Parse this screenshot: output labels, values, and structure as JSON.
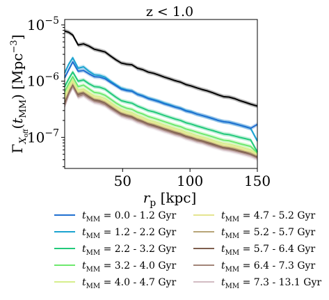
{
  "chart_data": {
    "type": "line",
    "title": "z < 1.0",
    "xlabel": "r_p [kpc]",
    "ylabel": "Γ_{X_off}(t_MM) [Mpc^-3]",
    "xlim": [
      7,
      150
    ],
    "ylim": [
      2.8e-08,
      1.25e-05
    ],
    "yscale": "log",
    "x_ticks": [
      {
        "value": 50,
        "label": "50"
      },
      {
        "value": 100,
        "label": "100"
      },
      {
        "value": 150,
        "label": "150"
      }
    ],
    "y_ticks": [
      {
        "value": 1e-07,
        "label": "10−7"
      },
      {
        "value": 1e-06,
        "label": "10−6"
      },
      {
        "value": 1e-05,
        "label": "10−5"
      }
    ],
    "legend_placement": "below",
    "x": [
      7,
      10,
      13,
      17,
      21,
      25,
      29,
      33,
      37,
      41,
      45,
      49,
      53,
      57,
      61,
      65,
      69,
      73,
      77,
      81,
      85,
      89,
      93,
      97,
      101,
      105,
      109,
      113,
      117,
      121,
      125,
      129,
      133,
      137,
      141,
      145,
      150
    ],
    "series": [
      {
        "name": "total",
        "color": "#000000",
        "label": "",
        "band": true,
        "values": [
          7.8e-06,
          7.4e-06,
          6.6e-06,
          4.4e-06,
          4.6e-06,
          4.2e-06,
          3.7e-06,
          3.5e-06,
          3.3e-06,
          2.8e-06,
          2.4e-06,
          2.1e-06,
          2e-06,
          1.95e-06,
          1.7e-06,
          1.6e-06,
          1.45e-06,
          1.38e-06,
          1.28e-06,
          1.18e-06,
          1.1e-06,
          1.02e-06,
          9.6e-07,
          8.7e-07,
          8.2e-07,
          7.6e-07,
          7.1e-07,
          6.7e-07,
          6.2e-07,
          5.7e-07,
          5.3e-07,
          5.2e-07,
          4.9e-07,
          4.5e-07,
          4.2e-07,
          3.9e-07,
          3.6e-07
        ]
      },
      {
        "name": "0.0 - 1.2 Gyr",
        "label": "0.0 - 1.2 Gyr",
        "color": "#1f6fd0",
        "values": [
          1.15e-06,
          1.6e-06,
          2.2e-06,
          1.5e-06,
          1.55e-06,
          1.35e-06,
          1.2e-06,
          1.18e-06,
          1.1e-06,
          9.5e-07,
          8.3e-07,
          7.2e-07,
          6.8e-07,
          6.6e-07,
          5.8e-07,
          5.4e-07,
          4.9e-07,
          4.6e-07,
          4.3e-07,
          3.95e-07,
          3.7e-07,
          3.45e-07,
          3.25e-07,
          2.95e-07,
          2.8e-07,
          2.6e-07,
          2.45e-07,
          2.3e-07,
          2.15e-07,
          2e-07,
          1.9e-07,
          1.85e-07,
          1.75e-07,
          1.65e-07,
          1.55e-07,
          1.45e-07,
          1.7e-07
        ]
      },
      {
        "name": "1.2 - 2.2 Gyr",
        "label": "1.2 - 2.2 Gyr",
        "color": "#1ba3d0",
        "values": [
          1.4e-06,
          2e-06,
          2.6e-06,
          1.7e-06,
          1.8e-06,
          1.5e-06,
          1.3e-06,
          1.27e-06,
          1.18e-06,
          1e-06,
          8.6e-07,
          7.5e-07,
          7e-07,
          6.7e-07,
          5.9e-07,
          5.5e-07,
          5e-07,
          4.7e-07,
          4.4e-07,
          4.05e-07,
          3.8e-07,
          3.5e-07,
          3.3e-07,
          3e-07,
          2.85e-07,
          2.6e-07,
          2.45e-07,
          2.3e-07,
          2.15e-07,
          2e-07,
          1.9e-07,
          1.85e-07,
          1.75e-07,
          1.65e-07,
          1.55e-07,
          1.45e-07,
          8.6e-08
        ]
      },
      {
        "name": "2.2 - 3.2 Gyr",
        "label": "2.2 - 3.2 Gyr",
        "color": "#22c97a",
        "values": [
          8e-07,
          1.1e-06,
          1.45e-06,
          1e-06,
          1.05e-06,
          9e-07,
          8e-07,
          7.8e-07,
          7.2e-07,
          6.1e-07,
          5.2e-07,
          4.5e-07,
          4.25e-07,
          4.05e-07,
          3.6e-07,
          3.3e-07,
          3e-07,
          2.85e-07,
          2.65e-07,
          2.45e-07,
          2.28e-07,
          2.12e-07,
          2e-07,
          1.82e-07,
          1.72e-07,
          1.6e-07,
          1.5e-07,
          1.4e-07,
          1.32e-07,
          1.23e-07,
          1.15e-07,
          1.12e-07,
          1.06e-07,
          1e-07,
          9.5e-08,
          9e-08,
          5.5e-08
        ]
      },
      {
        "name": "3.2 - 4.0 Gyr",
        "label": "3.2 - 4.0 Gyr",
        "color": "#6ee86e",
        "values": [
          6.5e-07,
          9e-07,
          1.2e-06,
          8e-07,
          8.5e-07,
          7.3e-07,
          6.3e-07,
          6.1e-07,
          5.6e-07,
          4.8e-07,
          4.1e-07,
          3.6e-07,
          3.3e-07,
          3.15e-07,
          2.8e-07,
          2.6e-07,
          2.35e-07,
          2.2e-07,
          2.05e-07,
          1.9e-07,
          1.77e-07,
          1.64e-07,
          1.55e-07,
          1.41e-07,
          1.33e-07,
          1.24e-07,
          1.16e-07,
          1.09e-07,
          1.02e-07,
          9.5e-08,
          8.9e-08,
          8.7e-08,
          8.2e-08,
          7.7e-08,
          7.3e-08,
          6.9e-08,
          5.3e-08
        ]
      },
      {
        "name": "4.0 - 4.7 Gyr",
        "label": "4.0 - 4.7 Gyr",
        "color": "#d6ee8c",
        "values": [
          5.5e-07,
          8e-07,
          1.05e-06,
          7e-07,
          7.3e-07,
          6.3e-07,
          5.5e-07,
          5.3e-07,
          4.9e-07,
          4.2e-07,
          3.6e-07,
          3.15e-07,
          2.9e-07,
          2.75e-07,
          2.45e-07,
          2.27e-07,
          2.05e-07,
          1.93e-07,
          1.8e-07,
          1.66e-07,
          1.55e-07,
          1.44e-07,
          1.36e-07,
          1.24e-07,
          1.17e-07,
          1.08e-07,
          1.02e-07,
          9.6e-08,
          8.9e-08,
          8.3e-08,
          7.8e-08,
          7.6e-08,
          7.2e-08,
          6.8e-08,
          6.4e-08,
          6e-08,
          5.1e-08
        ]
      },
      {
        "name": "4.7 - 5.2 Gyr",
        "label": "4.7 - 5.2 Gyr",
        "color": "#e5e590",
        "values": [
          5e-07,
          7.3e-07,
          9.8e-07,
          6.5e-07,
          6.8e-07,
          5.9e-07,
          5.1e-07,
          4.9e-07,
          4.5e-07,
          3.9e-07,
          3.35e-07,
          2.9e-07,
          2.7e-07,
          2.55e-07,
          2.28e-07,
          2.1e-07,
          1.9e-07,
          1.8e-07,
          1.67e-07,
          1.54e-07,
          1.44e-07,
          1.34e-07,
          1.26e-07,
          1.15e-07,
          1.08e-07,
          1e-07,
          9.5e-08,
          8.9e-08,
          8.3e-08,
          7.7e-08,
          7.2e-08,
          7e-08,
          6.7e-08,
          6.3e-08,
          5.9e-08,
          5.6e-08,
          4.9e-08
        ]
      },
      {
        "name": "5.2 - 5.7 Gyr",
        "label": "5.2 - 5.7 Gyr",
        "color": "#b7a477",
        "values": [
          4.6e-07,
          6.9e-07,
          9.3e-07,
          6.2e-07,
          6.5e-07,
          5.6e-07,
          4.9e-07,
          4.7e-07,
          4.3e-07,
          3.7e-07,
          3.2e-07,
          2.78e-07,
          2.58e-07,
          2.45e-07,
          2.18e-07,
          2.02e-07,
          1.83e-07,
          1.72e-07,
          1.6e-07,
          1.48e-07,
          1.38e-07,
          1.28e-07,
          1.21e-07,
          1.1e-07,
          1.04e-07,
          9.6e-08,
          9.1e-08,
          8.5e-08,
          8e-08,
          7.4e-08,
          6.9e-08,
          6.7e-08,
          6.4e-08,
          6e-08,
          5.7e-08,
          5.3e-08,
          4.7e-08
        ]
      },
      {
        "name": "5.7 - 6.4 Gyr",
        "label": "5.7 - 6.4 Gyr",
        "color": "#7e5e4e",
        "values": [
          4.2e-07,
          6.5e-07,
          8.8e-07,
          5.8e-07,
          6.2e-07,
          5.3e-07,
          4.65e-07,
          4.45e-07,
          4.1e-07,
          3.5e-07,
          3.05e-07,
          2.65e-07,
          2.46e-07,
          2.33e-07,
          2.08e-07,
          1.93e-07,
          1.75e-07,
          1.64e-07,
          1.53e-07,
          1.41e-07,
          1.32e-07,
          1.22e-07,
          1.15e-07,
          1.05e-07,
          9.9e-08,
          9.2e-08,
          8.7e-08,
          8.1e-08,
          7.6e-08,
          7.1e-08,
          6.6e-08,
          6.4e-08,
          6.1e-08,
          5.7e-08,
          5.4e-08,
          5.1e-08,
          4.5e-08
        ]
      },
      {
        "name": "6.4 - 7.3 Gyr",
        "label": "6.4 - 7.3 Gyr",
        "color": "#a28478",
        "values": [
          3.8e-07,
          6e-07,
          8.2e-07,
          5.4e-07,
          5.8e-07,
          5e-07,
          4.4e-07,
          4.2e-07,
          3.85e-07,
          3.3e-07,
          2.88e-07,
          2.5e-07,
          2.33e-07,
          2.2e-07,
          1.97e-07,
          1.83e-07,
          1.66e-07,
          1.56e-07,
          1.45e-07,
          1.34e-07,
          1.25e-07,
          1.16e-07,
          1.09e-07,
          1e-07,
          9.4e-08,
          8.7e-08,
          8.3e-08,
          7.7e-08,
          7.2e-08,
          6.7e-08,
          6.3e-08,
          6.1e-08,
          5.8e-08,
          5.5e-08,
          5.2e-08,
          4.9e-08,
          4.3e-08
        ]
      },
      {
        "name": "7.3 - 13.1 Gyr",
        "label": "7.3 - 13.1 Gyr",
        "color": "#d2bcc2",
        "values": [
          3.5e-07,
          5.6e-07,
          7.7e-07,
          5.1e-07,
          5.5e-07,
          4.7e-07,
          4.15e-07,
          3.95e-07,
          3.65e-07,
          3.12e-07,
          2.72e-07,
          2.37e-07,
          2.2e-07,
          2.08e-07,
          1.86e-07,
          1.73e-07,
          1.57e-07,
          1.48e-07,
          1.37e-07,
          1.27e-07,
          1.19e-07,
          1.1e-07,
          1.04e-07,
          9.5e-08,
          8.9e-08,
          8.3e-08,
          7.9e-08,
          7.3e-08,
          6.8e-08,
          6.4e-08,
          6e-08,
          5.8e-08,
          5.5e-08,
          5.2e-08,
          4.9e-08,
          4.6e-08,
          4.1e-08
        ]
      }
    ],
    "legend_prefix": "t",
    "legend_prefix_sub": "MM",
    "legend_eq": " = "
  }
}
